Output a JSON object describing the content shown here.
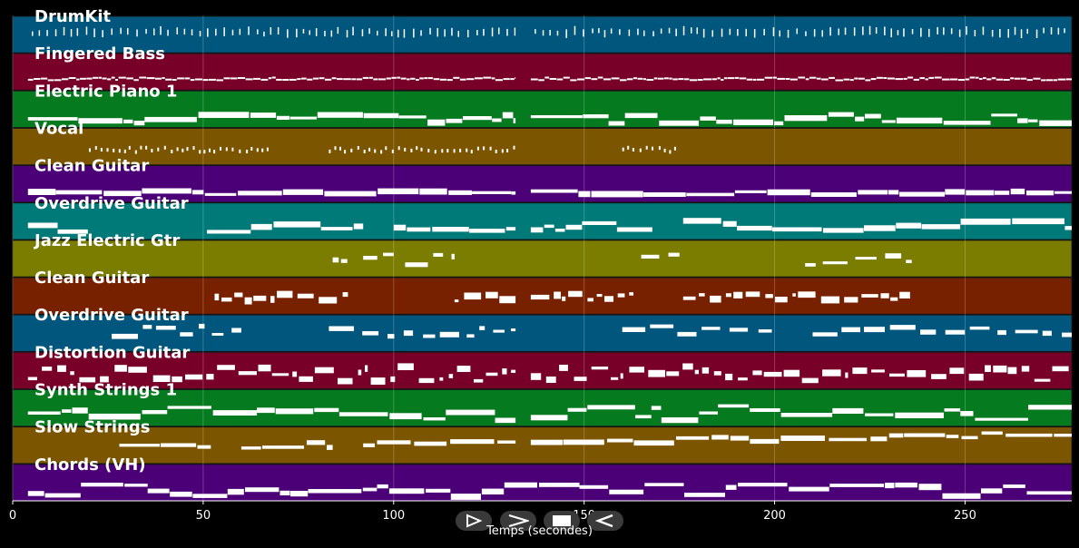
{
  "chart_data": {
    "type": "piano-roll",
    "title": "",
    "xlabel": "Temps (secondes)",
    "ylabel": "",
    "xlim": [
      0,
      278
    ],
    "xticks": [
      0,
      50,
      100,
      150,
      200,
      250
    ],
    "grid": true,
    "note_color": "#ffffff",
    "tracks": [
      {
        "name": "DrumKit",
        "color": "#00567d",
        "pattern": "drum",
        "segments": [
          [
            5,
            132
          ],
          [
            137,
            278
          ]
        ],
        "pitch": [
          0.55,
          0.65
        ]
      },
      {
        "name": "Fingered Bass",
        "color": "#780028",
        "pattern": "thin",
        "segments": [
          [
            4,
            132
          ],
          [
            136,
            278
          ]
        ],
        "pitch": [
          0.25,
          0.35
        ]
      },
      {
        "name": "Electric Piano 1",
        "color": "#067a1e",
        "pattern": "block",
        "segments": [
          [
            4,
            132
          ],
          [
            136,
            278
          ]
        ],
        "pitch": [
          0.1,
          0.35
        ]
      },
      {
        "name": "Vocal",
        "color": "#7c5500",
        "pattern": "dots",
        "segments": [
          [
            20,
            68
          ],
          [
            83,
            132
          ],
          [
            160,
            175
          ]
        ],
        "pitch": [
          0.35,
          0.45
        ]
      },
      {
        "name": "Clean Guitar",
        "color": "#4c0078",
        "pattern": "block",
        "segments": [
          [
            4,
            132
          ],
          [
            136,
            278
          ]
        ],
        "pitch": [
          0.2,
          0.3
        ]
      },
      {
        "name": "Overdrive Guitar",
        "color": "#007a78",
        "pattern": "block",
        "segments": [
          [
            4,
            20
          ],
          [
            51,
            92
          ],
          [
            100,
            132
          ],
          [
            136,
            168
          ],
          [
            176,
            278
          ]
        ],
        "pitch": [
          0.2,
          0.55
        ]
      },
      {
        "name": "Jazz Electric Gtr",
        "color": "#7a7d00",
        "pattern": "sparse",
        "segments": [
          [
            84,
            88
          ],
          [
            92,
            100
          ],
          [
            103,
            116
          ],
          [
            165,
            175
          ],
          [
            208,
            236
          ]
        ],
        "pitch": [
          0.3,
          0.6
        ]
      },
      {
        "name": "Clean Guitar",
        "color": "#782100",
        "pattern": "mixed",
        "segments": [
          [
            53,
            88
          ],
          [
            116,
            132
          ],
          [
            136,
            163
          ],
          [
            176,
            236
          ]
        ],
        "pitch": [
          0.35,
          0.55
        ]
      },
      {
        "name": "Overdrive Guitar",
        "color": "#00567d",
        "pattern": "sparse",
        "segments": [
          [
            26,
            60
          ],
          [
            83,
            132
          ],
          [
            160,
            200
          ],
          [
            210,
            278
          ]
        ],
        "pitch": [
          0.4,
          0.7
        ]
      },
      {
        "name": "Distortion Guitar",
        "color": "#780028",
        "pattern": "mixed",
        "segments": [
          [
            4,
            132
          ],
          [
            136,
            278
          ]
        ],
        "pitch": [
          0.2,
          0.6
        ]
      },
      {
        "name": "Synth Strings 1",
        "color": "#067a1e",
        "pattern": "block",
        "segments": [
          [
            4,
            132
          ],
          [
            136,
            278
          ]
        ],
        "pitch": [
          0.15,
          0.55
        ]
      },
      {
        "name": "Slow Strings",
        "color": "#7c5500",
        "pattern": "rising",
        "segments": [
          [
            28,
            52
          ],
          [
            60,
            84
          ],
          [
            92,
            132
          ],
          [
            136,
            278
          ]
        ],
        "pitch": [
          0.35,
          0.75
        ]
      },
      {
        "name": "Chords (VH)",
        "color": "#4c0078",
        "pattern": "block",
        "segments": [
          [
            4,
            278
          ]
        ],
        "pitch": [
          0.1,
          0.45
        ]
      }
    ]
  },
  "controls": [
    {
      "id": "play",
      "icon": "play-outline-icon"
    },
    {
      "id": "fast-forward",
      "icon": "fast-forward-icon"
    },
    {
      "id": "stop",
      "icon": "stop-icon"
    },
    {
      "id": "rewind",
      "icon": "rewind-icon"
    }
  ]
}
